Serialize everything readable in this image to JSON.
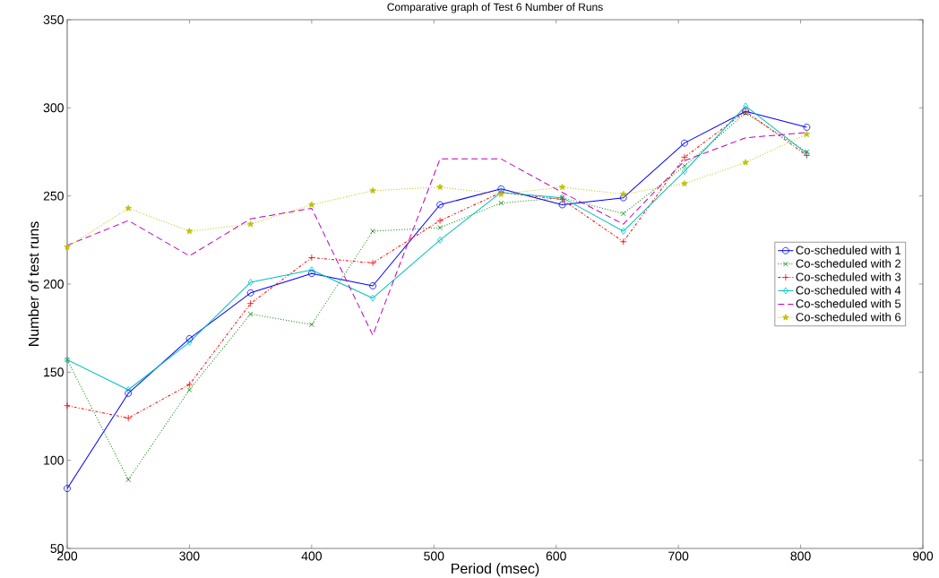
{
  "chart_data": {
    "type": "line",
    "title": "Comparative graph of Test 6 Number of Runs",
    "xlabel": "Period (msec)",
    "ylabel": "Number of test runs",
    "x": [
      200,
      250,
      300,
      350,
      400,
      450,
      505,
      555,
      605,
      655,
      705,
      755,
      805
    ],
    "xlim": [
      200,
      900
    ],
    "xticks": [
      200,
      300,
      400,
      500,
      600,
      700,
      800,
      900
    ],
    "ylim": [
      50,
      350
    ],
    "yticks": [
      50,
      100,
      150,
      200,
      250,
      300,
      350
    ],
    "grid": false,
    "legend": "right",
    "series": [
      {
        "name": "Co-scheduled with 1",
        "color": "#0000ff",
        "marker": "circle",
        "line_style": "solid",
        "values": [
          84,
          138,
          169,
          195,
          206,
          199,
          245,
          254,
          245,
          249,
          280,
          298,
          289
        ]
      },
      {
        "name": "Co-scheduled with 2",
        "color": "#008000",
        "marker": "cross",
        "line_style": "dotted",
        "values": [
          157,
          89,
          140,
          183,
          177,
          230,
          232,
          246,
          249,
          240,
          267,
          297,
          275
        ]
      },
      {
        "name": "Co-scheduled with 3",
        "color": "#ff0000",
        "marker": "plus",
        "line_style": "dashdot",
        "values": [
          131,
          124,
          143,
          189,
          215,
          212,
          236,
          252,
          248,
          224,
          272,
          298,
          273
        ]
      },
      {
        "name": "Co-scheduled with 4",
        "color": "#00bfbf",
        "marker": "diamond",
        "line_style": "solid",
        "values": [
          157,
          140,
          167,
          201,
          208,
          192,
          225,
          252,
          249,
          230,
          264,
          301,
          274
        ]
      },
      {
        "name": "Co-scheduled with 5",
        "color": "#bf00bf",
        "marker": "none",
        "line_style": "dashed",
        "values": [
          222,
          236,
          216,
          237,
          243,
          171,
          271,
          271,
          252,
          234,
          270,
          283,
          286
        ]
      },
      {
        "name": "Co-scheduled with 6",
        "color": "#bfbf00",
        "marker": "star",
        "line_style": "dotted",
        "values": [
          221,
          243,
          230,
          234,
          245,
          253,
          255,
          251,
          255,
          251,
          257,
          269,
          285
        ]
      }
    ]
  }
}
